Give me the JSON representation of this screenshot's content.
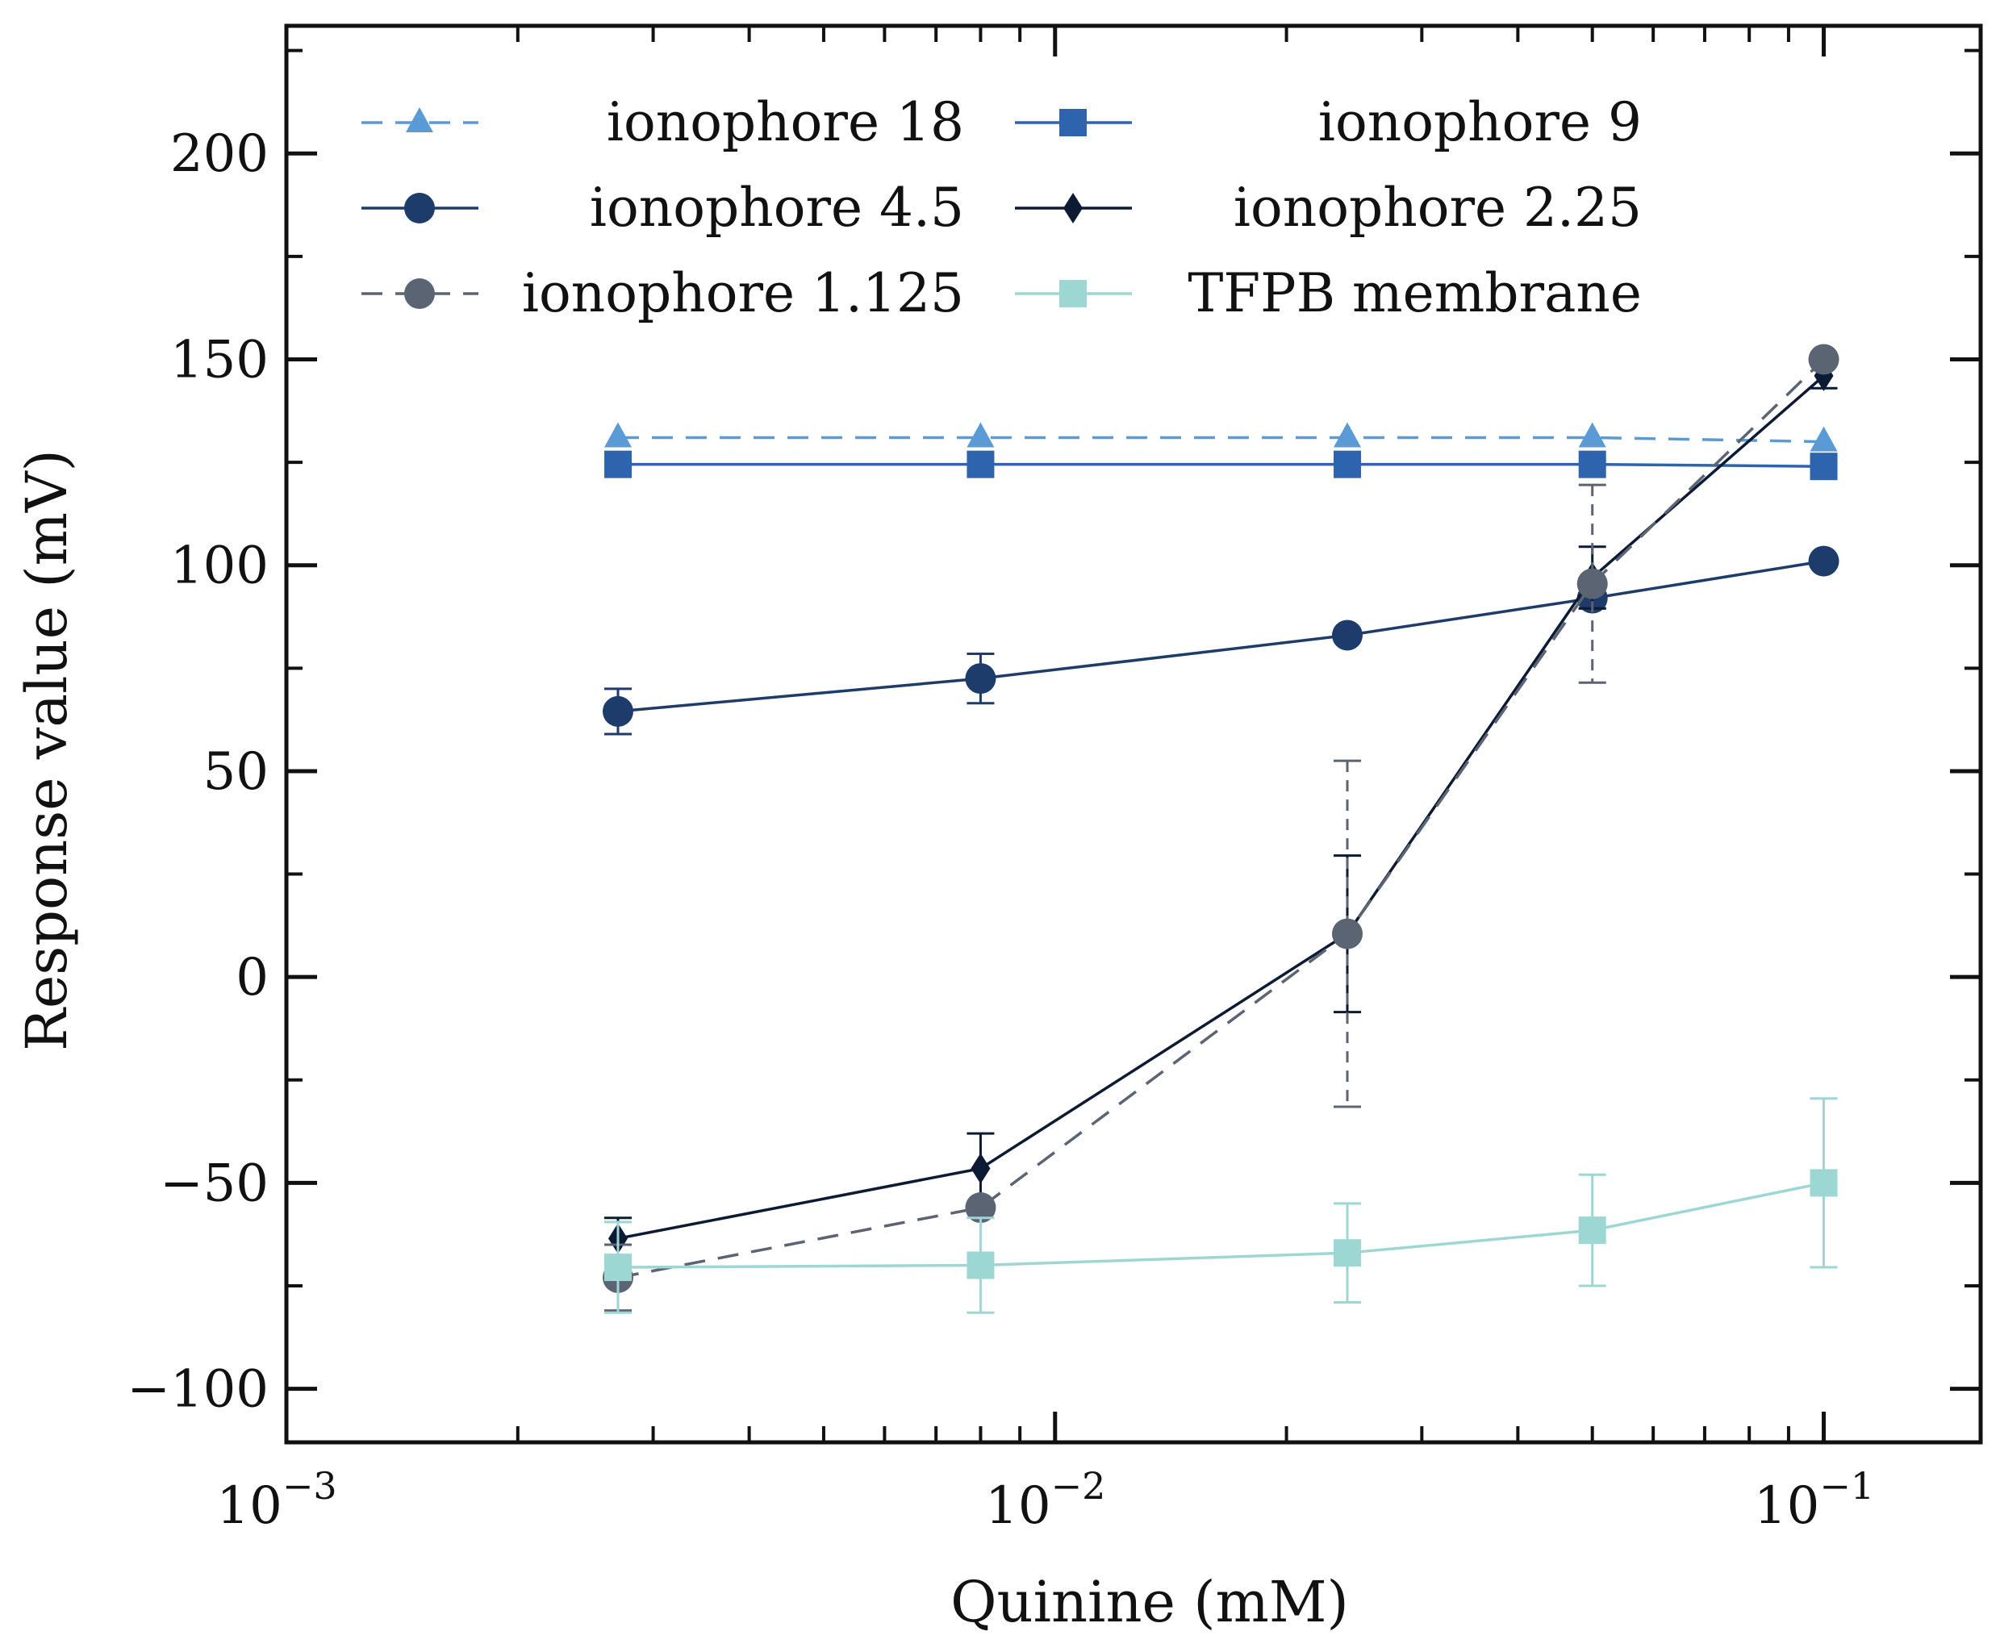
{
  "chart_data": {
    "type": "line",
    "title": "",
    "xlabel": "Quinine (mM)",
    "ylabel": "Response value (mV)",
    "x_scale": "log",
    "xlim": [
      0.001,
      0.16
    ],
    "ylim": [
      -113,
      231
    ],
    "x_tick_labels": [
      {
        "value": 0.001,
        "base": "10",
        "exp": "−3"
      },
      {
        "value": 0.01,
        "base": "10",
        "exp": "−2"
      },
      {
        "value": 0.1,
        "base": "10",
        "exp": "−1"
      }
    ],
    "y_ticks": [
      -100,
      -50,
      0,
      50,
      100,
      150,
      200
    ],
    "y_tick_labels": [
      "−100",
      "−50",
      "0",
      "50",
      "100",
      "150",
      "200"
    ],
    "legend_position": "upper-left, two columns",
    "grid": false,
    "x": [
      0.0027,
      0.008,
      0.024,
      0.05,
      0.1
    ],
    "series": [
      {
        "name": "ionophore 18",
        "color": "#5b9bd5",
        "linestyle": "dashed",
        "marker": "triangle",
        "values": [
          131,
          131,
          131,
          131,
          130
        ],
        "errors": [
          0,
          0,
          0,
          0,
          0
        ]
      },
      {
        "name": "ionophore 9",
        "color": "#2e64ad",
        "linestyle": "solid",
        "marker": "square",
        "values": [
          124.5,
          124.5,
          124.5,
          124.5,
          124
        ],
        "errors": [
          0,
          0,
          0,
          0,
          0
        ]
      },
      {
        "name": "ionophore 4.5",
        "color": "#1d3b6b",
        "linestyle": "solid",
        "marker": "circle",
        "values": [
          64.5,
          72.5,
          83,
          92,
          101
        ],
        "errors": [
          5.5,
          6,
          1.5,
          2.5,
          1
        ]
      },
      {
        "name": "ionophore 2.25",
        "color": "#0c1a33",
        "linestyle": "solid",
        "marker": "diamond",
        "values": [
          -63.5,
          -46.5,
          10.5,
          97,
          146
        ],
        "errors": [
          5,
          8.5,
          19,
          7.5,
          3
        ]
      },
      {
        "name": "ionophore 1.125",
        "color": "#5b6473",
        "linestyle": "dashed",
        "marker": "circle",
        "values": [
          -73,
          -56,
          10.5,
          95.5,
          150
        ],
        "errors": [
          8,
          0,
          42,
          24,
          0
        ]
      },
      {
        "name": "TFPB membrane",
        "color": "#9dd7d4",
        "linestyle": "solid",
        "marker": "square",
        "values": [
          -70.5,
          -70,
          -67,
          -61.5,
          -50
        ],
        "errors": [
          11,
          11.5,
          12,
          13.5,
          20.5
        ]
      }
    ]
  }
}
